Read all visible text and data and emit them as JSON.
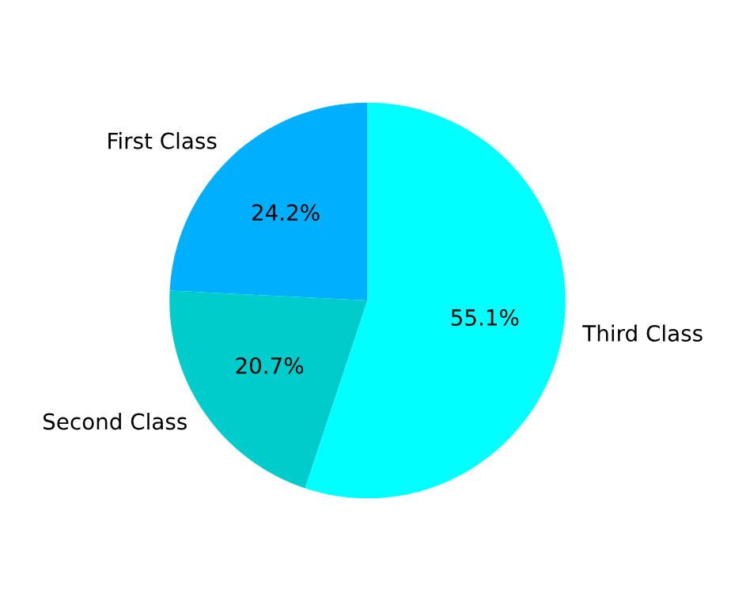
{
  "chart_data": {
    "type": "pie",
    "categories": [
      "First Class",
      "Second Class",
      "Third Class"
    ],
    "values": [
      24.2,
      20.7,
      55.1
    ],
    "value_labels": [
      "24.2%",
      "20.7%",
      "55.1%"
    ],
    "colors": [
      "#00b0ff",
      "#00cccc",
      "#00ffff"
    ]
  }
}
